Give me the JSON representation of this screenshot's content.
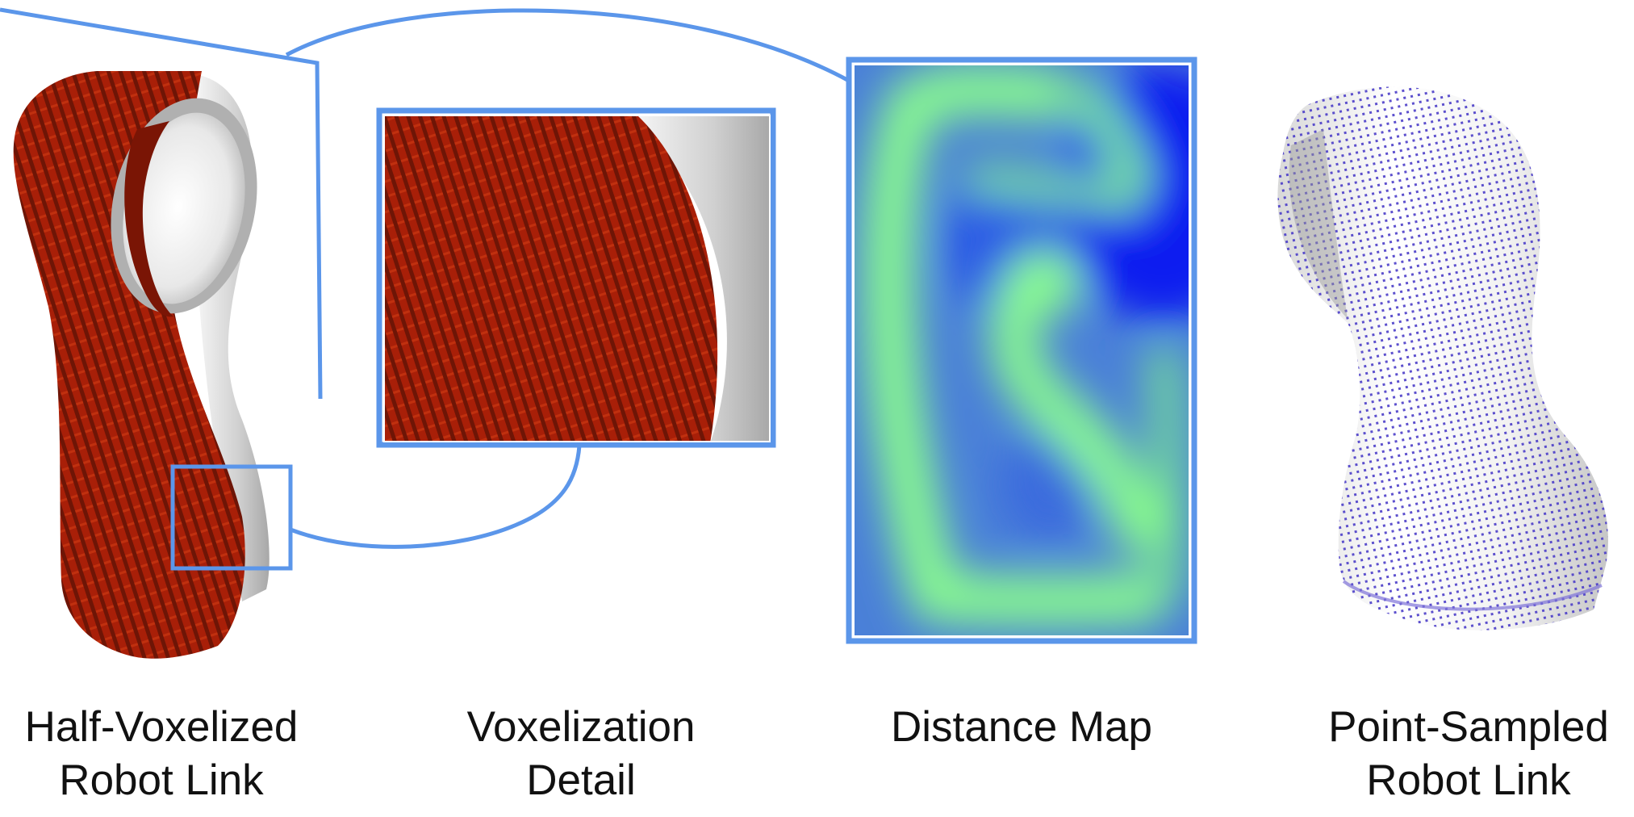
{
  "panels": [
    {
      "id": "half-voxelized",
      "line1": "Half-Voxelized",
      "line2": "Robot Link"
    },
    {
      "id": "voxelization-detail",
      "line1": "Voxelization",
      "line2": "Detail"
    },
    {
      "id": "distance-map",
      "line1": "Distance Map",
      "line2": ""
    },
    {
      "id": "point-sampled",
      "line1": "Point-Sampled",
      "line2": "Robot Link"
    }
  ],
  "colors": {
    "callout": "#5b96ea",
    "voxel_red": "#a81f08",
    "voxel_dark": "#6a1405",
    "shell_gray": "#c4c4c4",
    "shell_light": "#f4f4f4",
    "map_green": "#8cff8c",
    "map_mid": "#4a80d8",
    "map_blue": "#0a20f0",
    "points": "#4a3cc8"
  }
}
